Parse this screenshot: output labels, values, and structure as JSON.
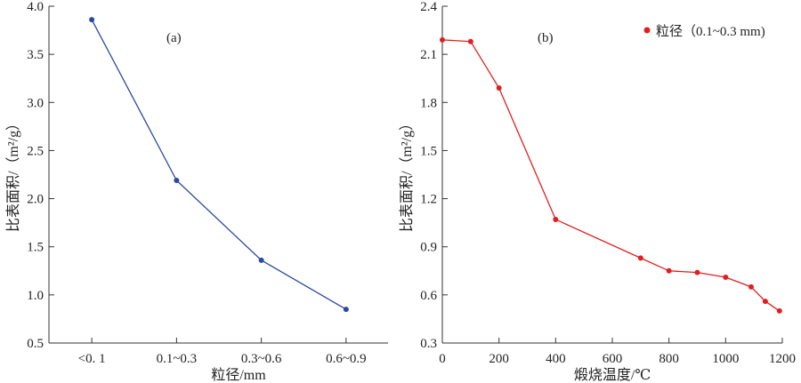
{
  "chart_data": [
    {
      "type": "line",
      "panel_label": "(a)",
      "xlabel": "粒径/mm",
      "ylabel": "比表面积/（m²/g）",
      "categories": [
        "<0. 1",
        "0.1~0.3",
        "0.3~0.6",
        "0.6~0.9"
      ],
      "x": [
        0,
        1,
        2,
        3
      ],
      "series": [
        {
          "values": [
            3.86,
            2.19,
            1.36,
            0.85
          ],
          "color": "#2a4a9e"
        }
      ],
      "ylim": [
        0.5,
        4.0
      ],
      "yticks": [
        0.5,
        1.0,
        1.5,
        2.0,
        2.5,
        3.0,
        3.5,
        4.0
      ],
      "ytick_labels": [
        "0.5",
        "1.0",
        "1.5",
        "2.0",
        "2.5",
        "3.0",
        "3.5",
        "4.0"
      ],
      "grid": false,
      "legend": "none"
    },
    {
      "type": "line",
      "panel_label": "(b)",
      "xlabel": "煅烧温度/℃",
      "ylabel": "比表面积/（m²/g）",
      "xlim": [
        0,
        1200
      ],
      "xticks": [
        0,
        200,
        400,
        600,
        800,
        1000,
        1200
      ],
      "xtick_labels": [
        "0",
        "200",
        "400",
        "600",
        "800",
        "1000",
        "1200"
      ],
      "ylim": [
        0.3,
        2.4
      ],
      "yticks": [
        0.3,
        0.6,
        0.9,
        1.2,
        1.5,
        1.8,
        2.1,
        2.4
      ],
      "ytick_labels": [
        "0.3",
        "0.6",
        "0.9",
        "1.2",
        "1.5",
        "1.8",
        "2.1",
        "2.4"
      ],
      "series": [
        {
          "name": "粒径（0.1~0.3 mm)",
          "color": "#e02020",
          "x": [
            0,
            100,
            200,
            400,
            700,
            800,
            900,
            1000,
            1090,
            1140,
            1190
          ],
          "values": [
            2.19,
            2.18,
            1.89,
            1.07,
            0.83,
            0.75,
            0.74,
            0.71,
            0.65,
            0.56,
            0.5
          ]
        }
      ],
      "grid": false,
      "legend": "top-right"
    }
  ]
}
